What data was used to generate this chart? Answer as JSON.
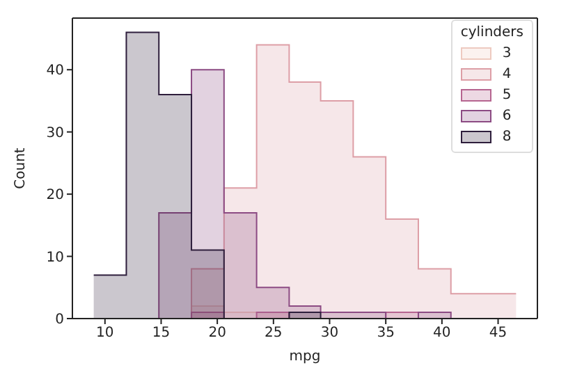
{
  "chart_data": {
    "type": "histogram",
    "xlabel": "mpg",
    "ylabel": "Count",
    "legend_title": "cylinders",
    "legend": "top right",
    "bins": [
      9,
      11.9,
      14.8,
      17.7,
      20.6,
      23.5,
      26.4,
      29.2,
      32.1,
      35.0,
      37.9,
      40.8,
      43.7,
      46.6
    ],
    "series": [
      {
        "name": "3",
        "color": "#eecac0",
        "values": [
          0,
          0,
          0,
          2,
          1,
          1,
          0,
          0,
          0,
          0,
          0,
          0,
          0
        ]
      },
      {
        "name": "4",
        "color": "#dd9ea6",
        "values": [
          0,
          0,
          0,
          8,
          21,
          44,
          38,
          35,
          26,
          16,
          8,
          4,
          4
        ]
      },
      {
        "name": "5",
        "color": "#b66590",
        "values": [
          0,
          0,
          0,
          1,
          0,
          1,
          0,
          0,
          0,
          1,
          0,
          0,
          0
        ]
      },
      {
        "name": "6",
        "color": "#8c4b83",
        "values": [
          0,
          0,
          17,
          40,
          17,
          5,
          2,
          1,
          1,
          0,
          1,
          0,
          0
        ]
      },
      {
        "name": "8",
        "color": "#2e1e3c",
        "values": [
          7,
          46,
          36,
          11,
          0,
          0,
          1,
          0,
          0,
          0,
          0,
          0,
          0
        ]
      }
    ],
    "xlim": [
      7.1,
      48.5
    ],
    "ylim": [
      0,
      48.3
    ],
    "xticks": [
      10,
      15,
      20,
      25,
      30,
      35,
      40,
      45
    ],
    "yticks": [
      0,
      10,
      20,
      30,
      40
    ]
  }
}
